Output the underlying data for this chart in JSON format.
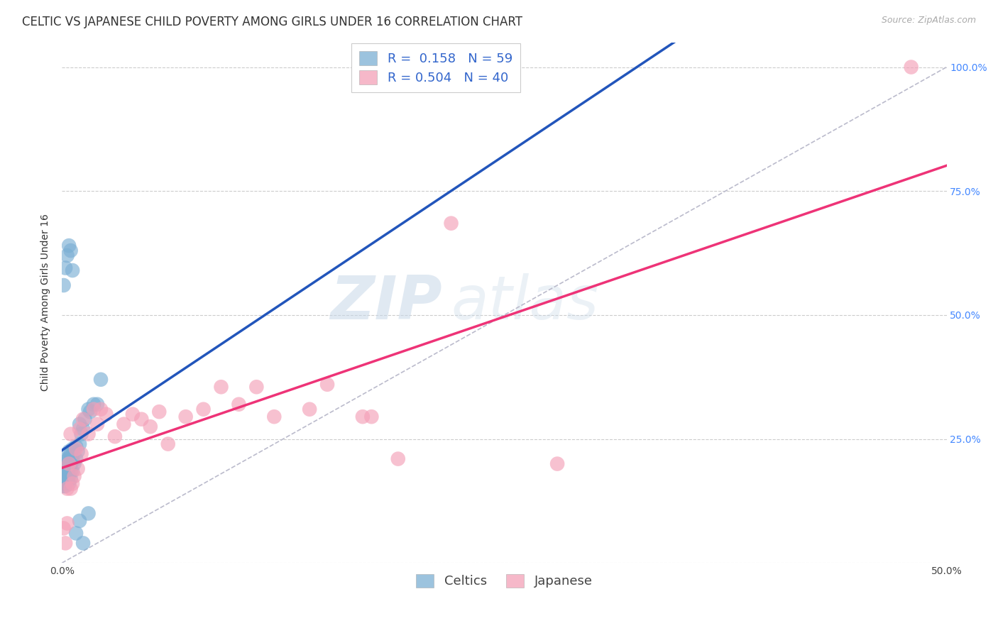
{
  "title": "CELTIC VS JAPANESE CHILD POVERTY AMONG GIRLS UNDER 16 CORRELATION CHART",
  "source": "Source: ZipAtlas.com",
  "ylabel": "Child Poverty Among Girls Under 16",
  "xlim": [
    0.0,
    0.5
  ],
  "ylim": [
    0.0,
    1.05
  ],
  "celtics_R": 0.158,
  "celtics_N": 59,
  "japanese_R": 0.504,
  "japanese_N": 40,
  "celtics_color": "#7BAFD4",
  "japanese_color": "#F4A0B8",
  "trendline_celtics_color": "#2255BB",
  "trendline_japanese_color": "#EE3377",
  "trendline_ref_color": "#BBBBCC",
  "watermark_zip": "ZIP",
  "watermark_atlas": "atlas",
  "background_color": "#FFFFFF",
  "celtics_x": [
    0.001,
    0.001,
    0.001,
    0.001,
    0.001,
    0.001,
    0.001,
    0.001,
    0.002,
    0.002,
    0.002,
    0.002,
    0.002,
    0.002,
    0.002,
    0.002,
    0.003,
    0.003,
    0.003,
    0.003,
    0.003,
    0.003,
    0.004,
    0.004,
    0.004,
    0.004,
    0.004,
    0.005,
    0.005,
    0.005,
    0.005,
    0.006,
    0.006,
    0.006,
    0.007,
    0.007,
    0.008,
    0.008,
    0.009,
    0.01,
    0.01,
    0.011,
    0.012,
    0.013,
    0.015,
    0.016,
    0.018,
    0.02,
    0.022,
    0.001,
    0.002,
    0.003,
    0.004,
    0.005,
    0.006,
    0.008,
    0.01,
    0.012,
    0.015
  ],
  "celtics_y": [
    0.155,
    0.16,
    0.165,
    0.17,
    0.175,
    0.18,
    0.185,
    0.19,
    0.155,
    0.16,
    0.17,
    0.175,
    0.18,
    0.185,
    0.195,
    0.205,
    0.165,
    0.17,
    0.175,
    0.18,
    0.195,
    0.21,
    0.16,
    0.175,
    0.19,
    0.21,
    0.225,
    0.17,
    0.185,
    0.2,
    0.22,
    0.185,
    0.21,
    0.23,
    0.2,
    0.225,
    0.21,
    0.235,
    0.225,
    0.24,
    0.28,
    0.26,
    0.27,
    0.29,
    0.31,
    0.305,
    0.32,
    0.32,
    0.37,
    0.56,
    0.595,
    0.62,
    0.64,
    0.63,
    0.59,
    0.06,
    0.085,
    0.04,
    0.1
  ],
  "japanese_x": [
    0.001,
    0.002,
    0.003,
    0.003,
    0.004,
    0.005,
    0.005,
    0.006,
    0.007,
    0.008,
    0.009,
    0.01,
    0.011,
    0.012,
    0.015,
    0.018,
    0.02,
    0.022,
    0.025,
    0.03,
    0.035,
    0.04,
    0.045,
    0.05,
    0.055,
    0.06,
    0.07,
    0.08,
    0.09,
    0.1,
    0.11,
    0.12,
    0.14,
    0.15,
    0.17,
    0.175,
    0.19,
    0.22,
    0.28,
    0.48
  ],
  "japanese_y": [
    0.07,
    0.04,
    0.15,
    0.08,
    0.2,
    0.15,
    0.26,
    0.16,
    0.175,
    0.23,
    0.19,
    0.27,
    0.22,
    0.29,
    0.26,
    0.31,
    0.28,
    0.31,
    0.3,
    0.255,
    0.28,
    0.3,
    0.29,
    0.275,
    0.305,
    0.24,
    0.295,
    0.31,
    0.355,
    0.32,
    0.355,
    0.295,
    0.31,
    0.36,
    0.295,
    0.295,
    0.21,
    0.685,
    0.2,
    1.0
  ],
  "grid_color": "#CCCCCC",
  "title_fontsize": 12,
  "axis_label_fontsize": 10,
  "tick_fontsize": 10,
  "legend_fontsize": 13
}
